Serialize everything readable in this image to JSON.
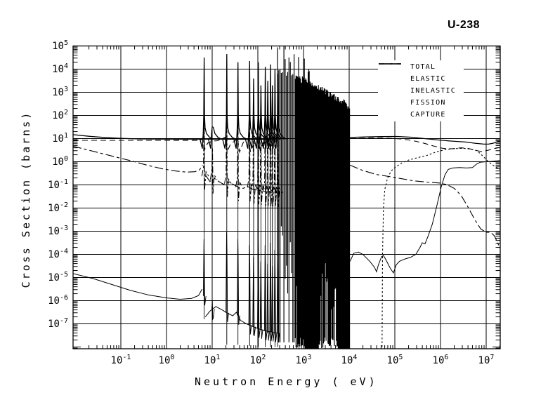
{
  "title": "U-238",
  "axes": {
    "x_label": "Neutron Energy ( eV)",
    "y_label": "Cross Section (barns)"
  },
  "legend": {
    "items": [
      {
        "label": "TOTAL",
        "line_style": "solid"
      },
      {
        "label": "ELASTIC",
        "line_style": "dashed"
      },
      {
        "label": "INELASTIC",
        "line_style": "dotted"
      },
      {
        "label": "FISSION",
        "line_style": "solid"
      },
      {
        "label": "CAPTURE",
        "line_style": "dashdot"
      }
    ]
  },
  "chart_data": {
    "type": "line",
    "title": "U-238",
    "xlabel": "Neutron Energy ( eV)",
    "ylabel": "Cross Section (barns)",
    "log_x": true,
    "log_y": true,
    "x_range_eV": [
      0.01,
      20000000
    ],
    "y_range_barns": [
      1e-08,
      100000
    ],
    "x_tick_exponents": [
      -1,
      0,
      1,
      2,
      3,
      4,
      5,
      6,
      7
    ],
    "y_tick_exponents": [
      5,
      4,
      3,
      2,
      1,
      0,
      -1,
      -2,
      -3,
      -4,
      -5,
      -6,
      -7
    ],
    "grid": true,
    "legend_position": "top-right-inside",
    "series": [
      {
        "name": "total",
        "line_style": "solid",
        "width": 1.3,
        "segments": [
          [
            [
              -2.046,
              1.17
            ],
            [
              -1.7,
              1.1
            ],
            [
              -1.3,
              1.04
            ],
            [
              -1.0,
              1.01
            ],
            [
              -0.6,
              0.985
            ],
            [
              -0.2,
              0.978
            ],
            [
              0.3,
              0.975
            ],
            [
              0.76,
              0.973
            ],
            [
              1.2,
              0.972
            ],
            [
              1.7,
              0.971
            ],
            [
              2.1,
              0.97
            ],
            [
              2.43,
              0.97
            ]
          ],
          [
            [
              4.02,
              1.05
            ],
            [
              4.35,
              1.07
            ],
            [
              4.7,
              1.085
            ],
            [
              5.05,
              1.09
            ],
            [
              5.35,
              1.06
            ],
            [
              5.65,
              1.0
            ],
            [
              5.95,
              0.94
            ],
            [
              6.25,
              0.89
            ],
            [
              6.55,
              0.85
            ],
            [
              6.75,
              0.8
            ],
            [
              6.95,
              0.76
            ],
            [
              7.05,
              0.76
            ],
            [
              7.15,
              0.8
            ],
            [
              7.308,
              0.9
            ]
          ]
        ]
      },
      {
        "name": "elastic",
        "line_style": "dashed",
        "width": 1.1,
        "segments": [
          [
            [
              -2.046,
              0.925
            ],
            [
              -1.0,
              0.925
            ],
            [
              0,
              0.925
            ],
            [
              0.6,
              0.92
            ],
            [
              0.75,
              0.92
            ],
            [
              0.79,
              1.02
            ],
            [
              0.84,
              0.55
            ],
            [
              0.9,
              0.8
            ],
            [
              1.0,
              0.89
            ],
            [
              1.12,
              0.91
            ],
            [
              1.28,
              1.05
            ],
            [
              1.33,
              0.45
            ],
            [
              1.41,
              0.8
            ],
            [
              1.5,
              0.89
            ],
            [
              1.55,
              1.05
            ],
            [
              1.6,
              0.42
            ],
            [
              1.68,
              0.83
            ],
            [
              1.78,
              1.0
            ],
            [
              1.84,
              0.45
            ],
            [
              1.93,
              0.83
            ],
            [
              2.0,
              1.0
            ],
            [
              2.05,
              0.5
            ],
            [
              2.12,
              0.83
            ],
            [
              2.2,
              0.97
            ],
            [
              2.26,
              0.55
            ],
            [
              2.33,
              0.85
            ],
            [
              2.43,
              0.92
            ]
          ],
          [
            [
              4.02,
              1.0
            ],
            [
              4.4,
              1.02
            ],
            [
              4.8,
              1.02
            ],
            [
              5.1,
              0.99
            ],
            [
              5.35,
              0.93
            ],
            [
              5.6,
              0.82
            ],
            [
              5.85,
              0.68
            ],
            [
              6.05,
              0.58
            ],
            [
              6.25,
              0.56
            ],
            [
              6.45,
              0.6
            ],
            [
              6.6,
              0.58
            ],
            [
              6.75,
              0.5
            ],
            [
              6.9,
              0.44
            ],
            [
              7.05,
              0.5
            ],
            [
              7.2,
              0.58
            ],
            [
              7.308,
              0.62
            ]
          ]
        ]
      },
      {
        "name": "inelastic",
        "line_style": "dotted",
        "width": 1.1,
        "segments": [
          [
            [
              4.72,
              -8.0
            ],
            [
              4.73,
              -4.0
            ],
            [
              4.75,
              -2.0
            ],
            [
              4.78,
              -1.2
            ],
            [
              4.84,
              -0.7
            ],
            [
              4.92,
              -0.4
            ],
            [
              5.0,
              -0.25
            ],
            [
              5.15,
              -0.05
            ],
            [
              5.3,
              0.07
            ],
            [
              5.5,
              0.18
            ],
            [
              5.7,
              0.27
            ],
            [
              5.9,
              0.42
            ],
            [
              6.1,
              0.52
            ],
            [
              6.3,
              0.57
            ],
            [
              6.5,
              0.58
            ],
            [
              6.65,
              0.55
            ],
            [
              6.8,
              0.48
            ],
            [
              6.95,
              0.2
            ],
            [
              7.05,
              0.0
            ],
            [
              7.15,
              -0.15
            ],
            [
              7.25,
              -0.28
            ],
            [
              7.308,
              -0.33
            ]
          ]
        ]
      },
      {
        "name": "fission",
        "line_style": "solid",
        "width": 1.0,
        "segments": [
          [
            [
              -2.046,
              -4.83
            ],
            [
              -1.6,
              -5.05
            ],
            [
              -1.2,
              -5.3
            ],
            [
              -0.8,
              -5.55
            ],
            [
              -0.4,
              -5.75
            ],
            [
              0,
              -5.88
            ],
            [
              0.3,
              -5.94
            ],
            [
              0.55,
              -5.9
            ],
            [
              0.7,
              -5.78
            ],
            [
              0.78,
              -5.5
            ]
          ],
          [
            [
              0.85,
              -6.7
            ],
            [
              0.95,
              -6.45
            ],
            [
              1.08,
              -6.25
            ],
            [
              1.22,
              -6.4
            ],
            [
              1.34,
              -6.55
            ],
            [
              1.45,
              -6.65
            ],
            [
              1.53,
              -6.5
            ],
            [
              1.62,
              -6.85
            ],
            [
              1.75,
              -7.0
            ],
            [
              1.87,
              -7.1
            ],
            [
              2.0,
              -7.2
            ],
            [
              2.15,
              -7.3
            ],
            [
              2.43,
              -7.4
            ]
          ],
          [
            [
              4.02,
              -4.3
            ],
            [
              4.1,
              -3.95
            ],
            [
              4.2,
              -3.9
            ],
            [
              4.3,
              -4.0
            ],
            [
              4.45,
              -4.3
            ],
            [
              4.55,
              -4.55
            ],
            [
              4.6,
              -4.75
            ],
            [
              4.64,
              -4.45
            ],
            [
              4.71,
              -4.1
            ],
            [
              4.75,
              -4.05
            ],
            [
              4.81,
              -4.25
            ],
            [
              4.9,
              -4.6
            ],
            [
              4.97,
              -4.8
            ],
            [
              5.03,
              -4.45
            ],
            [
              5.1,
              -4.3
            ],
            [
              5.22,
              -4.2
            ],
            [
              5.35,
              -4.12
            ],
            [
              5.46,
              -4.0
            ],
            [
              5.55,
              -3.7
            ],
            [
              5.6,
              -3.5
            ],
            [
              5.66,
              -3.55
            ],
            [
              5.73,
              -3.2
            ],
            [
              5.82,
              -2.7
            ],
            [
              5.92,
              -1.9
            ],
            [
              6.02,
              -1.05
            ],
            [
              6.1,
              -0.55
            ],
            [
              6.17,
              -0.33
            ],
            [
              6.27,
              -0.27
            ],
            [
              6.42,
              -0.25
            ],
            [
              6.57,
              -0.27
            ],
            [
              6.7,
              -0.25
            ],
            [
              6.79,
              -0.1
            ],
            [
              6.87,
              -0.02
            ],
            [
              7.0,
              0.0
            ],
            [
              7.15,
              0.02
            ],
            [
              7.308,
              0.05
            ]
          ]
        ]
      },
      {
        "name": "capture",
        "line_style": "dashdot",
        "width": 1.1,
        "segments": [
          [
            [
              -2.046,
              0.67
            ],
            [
              -1.6,
              0.45
            ],
            [
              -1.2,
              0.25
            ],
            [
              -0.8,
              0.05
            ],
            [
              -0.4,
              -0.16
            ],
            [
              -0.1,
              -0.3
            ],
            [
              0.2,
              -0.4
            ],
            [
              0.45,
              -0.45
            ],
            [
              0.62,
              -0.43
            ],
            [
              0.72,
              -0.36
            ],
            [
              0.79,
              -0.15
            ]
          ],
          [
            [
              0.86,
              -0.6
            ],
            [
              0.95,
              -0.85
            ],
            [
              1.05,
              -0.72
            ],
            [
              1.18,
              -0.9
            ],
            [
              1.28,
              -1.0
            ],
            [
              1.38,
              -0.87
            ],
            [
              1.48,
              -1.0
            ],
            [
              1.57,
              -1.1
            ],
            [
              1.68,
              -1.15
            ],
            [
              1.78,
              -1.07
            ],
            [
              1.9,
              -1.2
            ],
            [
              2.05,
              -1.25
            ],
            [
              2.2,
              -1.3
            ],
            [
              2.43,
              -1.35
            ]
          ],
          [
            [
              4.02,
              -0.15
            ],
            [
              4.3,
              -0.38
            ],
            [
              4.6,
              -0.55
            ],
            [
              5.0,
              -0.68
            ],
            [
              5.4,
              -0.82
            ],
            [
              5.7,
              -0.88
            ],
            [
              6.0,
              -0.92
            ],
            [
              6.15,
              -1.0
            ],
            [
              6.3,
              -1.15
            ],
            [
              6.45,
              -1.45
            ],
            [
              6.6,
              -1.95
            ],
            [
              6.75,
              -2.5
            ],
            [
              6.88,
              -2.9
            ],
            [
              7.0,
              -3.05
            ],
            [
              7.1,
              -3.05
            ],
            [
              7.18,
              -3.2
            ],
            [
              7.25,
              -3.5
            ],
            [
              7.308,
              -3.75
            ]
          ]
        ]
      }
    ],
    "resolved_resonances": {
      "total_baseline_log": 0.97,
      "logE": [
        0.824,
        1.008,
        1.32,
        1.565,
        1.82,
        1.907,
        2.011,
        2.068,
        2.163,
        2.218,
        2.278,
        2.319,
        2.375,
        2.437
      ],
      "total_peak_log": [
        4.5,
        1.5,
        4.65,
        4.3,
        4.35,
        3.6,
        4.3,
        3.3,
        4.1,
        3.5,
        4.2,
        3.3,
        4.0,
        3.8
      ],
      "capture_peak_log": [
        2.6,
        0.6,
        3.1,
        2.9,
        2.8,
        2.4,
        2.9,
        2.2,
        2.7,
        2.3,
        2.7,
        2.1,
        2.6,
        2.5
      ],
      "fission_peak_log": [
        -3.35,
        -6.0,
        -3.05,
        -3.35,
        -3.6,
        -4.1,
        -3.3,
        -4.3,
        -3.6,
        -4.4,
        -3.5,
        -4.5,
        -3.8,
        -3.9
      ],
      "spike_bottom_log": [
        -6.8,
        99,
        -7.9,
        -7.9,
        -7.95,
        -7.5,
        -8.0,
        -7.2,
        -8.0,
        -7.4,
        -8.0,
        -7.5,
        -8.0,
        -8.0
      ]
    },
    "unresolved_band": {
      "logE_start": 2.43,
      "logE_end": 4.0,
      "top_log_start": 4.0,
      "top_log_end": 2.4,
      "bottom_log": -7.9,
      "solid_bottom_ranges": [
        [
          3.02,
          3.3
        ],
        [
          3.75,
          4.0
        ]
      ],
      "seed": 7
    }
  }
}
